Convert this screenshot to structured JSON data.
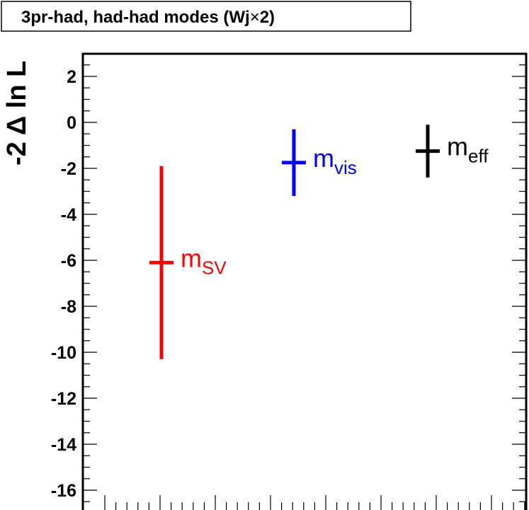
{
  "chart_data": {
    "type": "scatter",
    "title": "3pr-had, had-had modes (Wj×2)",
    "title_parts": {
      "prefix": "3pr-had, had-had modes (Wj",
      "times": "×",
      "suffix": "2)"
    },
    "ylabel": "-2 Δ ln L",
    "xlabel": "",
    "ylim": [
      -17,
      3
    ],
    "yticks": [
      2,
      0,
      -2,
      -4,
      -6,
      -8,
      -10,
      -12,
      -14,
      -16
    ],
    "ytick_labels": [
      "2",
      "0",
      "-2",
      "-4",
      "-6",
      "-8",
      "-10",
      "-12",
      "-14",
      "-16"
    ],
    "grid": false,
    "points": [
      {
        "label_main": "m",
        "label_sub": "SV",
        "y": -6.1,
        "err_low": 4.2,
        "err_high": 4.2,
        "color": "#ff0000"
      },
      {
        "label_main": "m",
        "label_sub": "vis",
        "y": -1.75,
        "err_low": 1.45,
        "err_high": 1.45,
        "color": "#0000ff"
      },
      {
        "label_main": "m",
        "label_sub": "eff",
        "y": -1.25,
        "err_low": 1.15,
        "err_high": 1.15,
        "color": "#000000"
      }
    ]
  }
}
